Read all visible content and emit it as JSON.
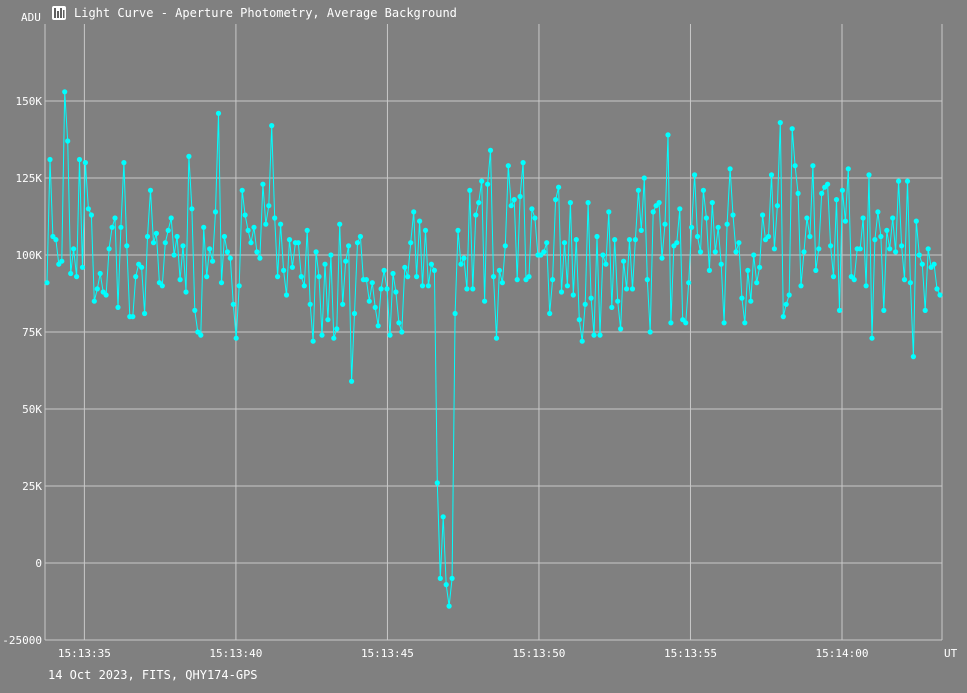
{
  "window": {
    "title": "Light Curve - Aperture Photometry, Average Background",
    "icon": "light-curve-app-icon"
  },
  "footer": "14 Oct 2023, FITS, QHY174-GPS",
  "colors": {
    "background": "#808080",
    "grid": "#c8c8c8",
    "series": "#00ffff",
    "text": "#ffffff"
  },
  "chart_data": {
    "type": "line",
    "title": "Light Curve - Aperture Photometry, Average Background",
    "ylabel": "ADU",
    "xlabel": "UT",
    "ylim": [
      -25000,
      175000
    ],
    "xlim": [
      "15:13:33.7",
      "15:14:03.3"
    ],
    "y_ticks": [
      {
        "value": -25000,
        "label": "-25000"
      },
      {
        "value": 0,
        "label": "0"
      },
      {
        "value": 25000,
        "label": "25K"
      },
      {
        "value": 50000,
        "label": "50K"
      },
      {
        "value": 75000,
        "label": "75K"
      },
      {
        "value": 100000,
        "label": "100K"
      },
      {
        "value": 125000,
        "label": "125K"
      },
      {
        "value": 150000,
        "label": "150K"
      }
    ],
    "x_ticks": [
      {
        "value": "15:13:35",
        "label": "15:13:35"
      },
      {
        "value": "15:13:40",
        "label": "15:13:40"
      },
      {
        "value": "15:13:45",
        "label": "15:13:45"
      },
      {
        "value": "15:13:50",
        "label": "15:13:50"
      },
      {
        "value": "15:13:55",
        "label": "15:13:55"
      },
      {
        "value": "15:14:00",
        "label": "15:14:00"
      }
    ],
    "grid": true,
    "series": [
      {
        "values": [
          91000,
          131000,
          106000,
          105000,
          97000,
          98000,
          153000,
          137000,
          94000,
          102000,
          93000,
          131000,
          96000,
          130000,
          115000,
          113000,
          85000,
          89000,
          94000,
          88000,
          87000,
          102000,
          109000,
          112000,
          83000,
          109000,
          130000,
          103000,
          80000,
          80000,
          93000,
          97000,
          96000,
          81000,
          106000,
          121000,
          104000,
          107000,
          91000,
          90000,
          104000,
          108000,
          112000,
          100000,
          106000,
          92000,
          103000,
          88000,
          132000,
          115000,
          82000,
          75000,
          74000,
          109000,
          93000,
          102000,
          98000,
          114000,
          146000,
          91000,
          106000,
          101000,
          99000,
          84000,
          73000,
          90000,
          121000,
          113000,
          108000,
          104000,
          109000,
          101000,
          99000,
          123000,
          110000,
          116000,
          142000,
          112000,
          93000,
          110000,
          95000,
          87000,
          105000,
          96000,
          104000,
          104000,
          93000,
          90000,
          108000,
          84000,
          72000,
          101000,
          93000,
          74000,
          97000,
          79000,
          100000,
          73000,
          76000,
          110000,
          84000,
          98000,
          103000,
          59000,
          81000,
          104000,
          106000,
          92000,
          92000,
          85000,
          91000,
          83000,
          77000,
          89000,
          95000,
          89000,
          74000,
          94000,
          88000,
          78000,
          75000,
          96000,
          93000,
          104000,
          114000,
          93000,
          111000,
          90000,
          108000,
          90000,
          97000,
          95000,
          26000,
          -5000,
          15000,
          -7000,
          -14000,
          -5000,
          81000,
          108000,
          97000,
          99000,
          89000,
          121000,
          89000,
          113000,
          117000,
          124000,
          85000,
          123000,
          134000,
          93000,
          73000,
          95000,
          91000,
          103000,
          129000,
          116000,
          118000,
          92000,
          119000,
          130000,
          92000,
          93000,
          115000,
          112000,
          100000,
          100000,
          101000,
          104000,
          81000,
          92000,
          118000,
          122000,
          88000,
          104000,
          90000,
          117000,
          87000,
          105000,
          79000,
          72000,
          84000,
          117000,
          86000,
          74000,
          106000,
          74000,
          100000,
          97000,
          114000,
          83000,
          105000,
          85000,
          76000,
          98000,
          89000,
          105000,
          89000,
          105000,
          121000,
          108000,
          125000,
          92000,
          75000,
          114000,
          116000,
          117000,
          99000,
          110000,
          139000,
          78000,
          103000,
          104000,
          115000,
          79000,
          78000,
          91000,
          109000,
          126000,
          106000,
          101000,
          121000,
          112000,
          95000,
          117000,
          101000,
          109000,
          97000,
          78000,
          110000,
          128000,
          113000,
          101000,
          104000,
          86000,
          78000,
          95000,
          85000,
          100000,
          91000,
          96000,
          113000,
          105000,
          106000,
          126000,
          102000,
          116000,
          143000,
          80000,
          84000,
          87000,
          141000,
          129000,
          120000,
          90000,
          101000,
          112000,
          106000,
          129000,
          95000,
          102000,
          120000,
          122000,
          123000,
          103000,
          93000,
          118000,
          82000,
          121000,
          111000,
          128000,
          93000,
          92000,
          102000,
          102000,
          112000,
          90000,
          126000,
          73000,
          105000,
          114000,
          106000,
          82000,
          108000,
          102000,
          112000,
          101000,
          124000,
          103000,
          92000,
          124000,
          91000,
          67000,
          111000,
          100000,
          97000,
          82000,
          102000,
          96000,
          97000,
          89000,
          87000
        ]
      }
    ]
  }
}
